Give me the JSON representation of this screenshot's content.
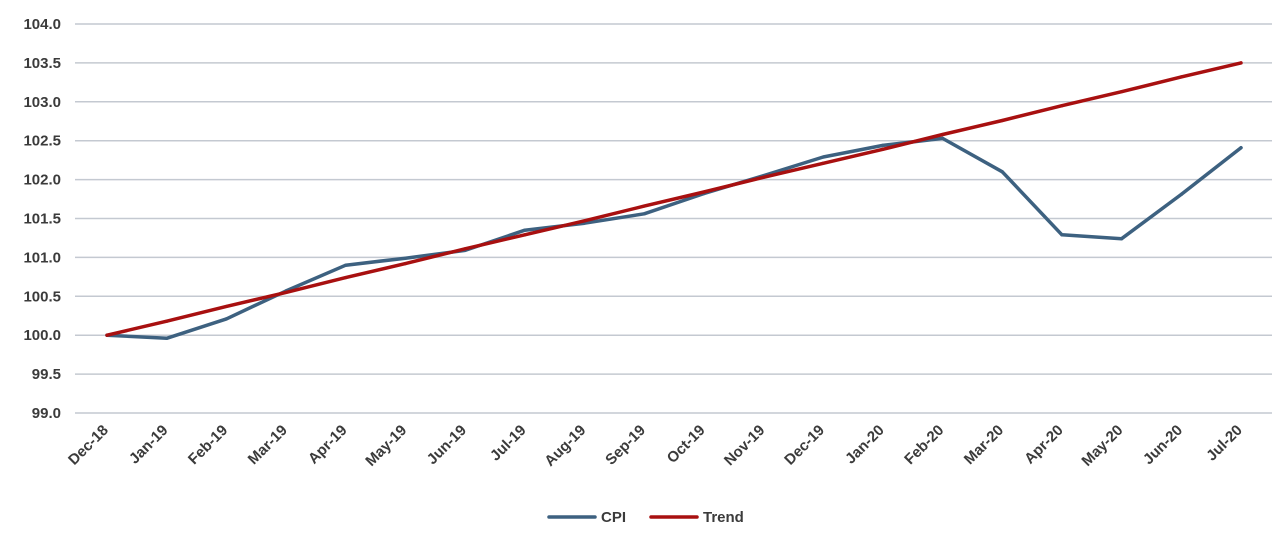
{
  "chart_data": {
    "type": "line",
    "title": "",
    "xlabel": "",
    "ylabel": "",
    "ylim": [
      99.0,
      104.0
    ],
    "yticks": [
      "99.0",
      "99.5",
      "100.0",
      "100.5",
      "101.0",
      "101.5",
      "102.0",
      "102.5",
      "103.0",
      "103.5",
      "104.0"
    ],
    "categories": [
      "Dec-18",
      "Jan-19",
      "Feb-19",
      "Mar-19",
      "Apr-19",
      "May-19",
      "Jun-19",
      "Jul-19",
      "Aug-19",
      "Sep-19",
      "Oct-19",
      "Nov-19",
      "Dec-19",
      "Jan-20",
      "Feb-20",
      "Mar-20",
      "Apr-20",
      "May-20",
      "Jun-20",
      "Jul-20"
    ],
    "grid": "horizontal",
    "legend_position": "bottom-center",
    "series": [
      {
        "name": "CPI",
        "color": "#3d6180",
        "values": [
          100.0,
          99.96,
          100.21,
          100.57,
          100.9,
          100.99,
          101.09,
          101.35,
          101.44,
          101.56,
          101.82,
          102.05,
          102.29,
          102.44,
          102.53,
          102.1,
          101.29,
          101.24,
          101.81,
          102.41
        ]
      },
      {
        "name": "Trend",
        "color": "#a81010",
        "values": [
          100.0,
          100.18,
          100.37,
          100.55,
          100.74,
          100.92,
          101.11,
          101.29,
          101.47,
          101.66,
          101.84,
          102.03,
          102.21,
          102.39,
          102.58,
          102.76,
          102.95,
          103.13,
          103.32,
          103.5
        ]
      }
    ]
  }
}
